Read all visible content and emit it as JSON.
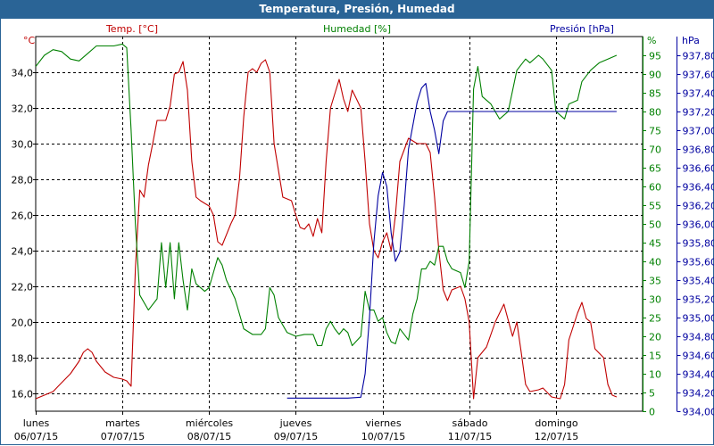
{
  "window": {
    "title": "Temperatura, Presión, Humedad"
  },
  "chart_data": {
    "type": "line",
    "title": "Temperatura, Presión, Humedad",
    "x_labels": [
      {
        "day": "lunes",
        "date": "06/07/15"
      },
      {
        "day": "martes",
        "date": "07/07/15"
      },
      {
        "day": "miércoles",
        "date": "08/07/15"
      },
      {
        "day": "jueves",
        "date": "09/07/15"
      },
      {
        "day": "viernes",
        "date": "10/07/15"
      },
      {
        "day": "sábado",
        "date": "11/07/15"
      },
      {
        "day": "domingo",
        "date": "12/07/15"
      }
    ],
    "x_range_days": [
      0,
      7.0
    ],
    "axes": {
      "temp": {
        "label": "Temp. [°C]",
        "unit": "°C",
        "range": [
          15.0,
          36.0
        ],
        "ticks": [
          "16,0",
          "18,0",
          "20,0",
          "22,0",
          "24,0",
          "26,0",
          "28,0",
          "30,0",
          "32,0",
          "34,0"
        ],
        "tick_values": [
          16,
          18,
          20,
          22,
          24,
          26,
          28,
          30,
          32,
          34
        ],
        "color": "#c00000"
      },
      "hum": {
        "label": "Humedad [%]",
        "unit": "%",
        "range": [
          0,
          100
        ],
        "ticks": [
          "0",
          "5",
          "10",
          "15",
          "20",
          "25",
          "30",
          "35",
          "40",
          "45",
          "50",
          "55",
          "60",
          "65",
          "70",
          "75",
          "80",
          "85",
          "90",
          "95"
        ],
        "tick_values": [
          0,
          5,
          10,
          15,
          20,
          25,
          30,
          35,
          40,
          45,
          50,
          55,
          60,
          65,
          70,
          75,
          80,
          85,
          90,
          95
        ],
        "color": "#008000"
      },
      "pres": {
        "label": "Presión [hPa]",
        "unit": "hPa",
        "range": [
          934.0,
          938.0
        ],
        "ticks": [
          "934,00",
          "934,20",
          "934,40",
          "934,60",
          "934,80",
          "935,00",
          "935,20",
          "935,40",
          "935,60",
          "935,80",
          "936,00",
          "936,20",
          "936,40",
          "936,60",
          "936,80",
          "937,00",
          "937,20",
          "937,40",
          "937,60",
          "937,80"
        ],
        "tick_values": [
          934.0,
          934.2,
          934.4,
          934.6,
          934.8,
          935.0,
          935.2,
          935.4,
          935.6,
          935.8,
          936.0,
          936.2,
          936.4,
          936.6,
          936.8,
          937.0,
          937.2,
          937.4,
          937.6,
          937.8
        ],
        "color": "#0000a0"
      }
    },
    "grid": true,
    "series": [
      {
        "name": "Temp. [°C]",
        "axis": "temp",
        "color": "#c00000",
        "points": [
          [
            0.0,
            15.7
          ],
          [
            0.1,
            15.9
          ],
          [
            0.2,
            16.1
          ],
          [
            0.3,
            16.6
          ],
          [
            0.4,
            17.1
          ],
          [
            0.5,
            17.8
          ],
          [
            0.55,
            18.3
          ],
          [
            0.6,
            18.5
          ],
          [
            0.65,
            18.3
          ],
          [
            0.7,
            17.8
          ],
          [
            0.8,
            17.2
          ],
          [
            0.9,
            16.9
          ],
          [
            1.0,
            16.8
          ],
          [
            1.05,
            16.7
          ],
          [
            1.1,
            16.4
          ],
          [
            1.15,
            23.0
          ],
          [
            1.2,
            27.4
          ],
          [
            1.25,
            27.0
          ],
          [
            1.3,
            28.8
          ],
          [
            1.35,
            30.0
          ],
          [
            1.4,
            31.3
          ],
          [
            1.5,
            31.3
          ],
          [
            1.55,
            32.1
          ],
          [
            1.6,
            33.9
          ],
          [
            1.65,
            34.0
          ],
          [
            1.7,
            34.6
          ],
          [
            1.75,
            33.0
          ],
          [
            1.8,
            29.0
          ],
          [
            1.85,
            27.0
          ],
          [
            1.9,
            26.8
          ],
          [
            2.0,
            26.5
          ],
          [
            2.05,
            26.0
          ],
          [
            2.1,
            24.5
          ],
          [
            2.15,
            24.3
          ],
          [
            2.25,
            25.5
          ],
          [
            2.3,
            26.0
          ],
          [
            2.35,
            28.0
          ],
          [
            2.4,
            31.5
          ],
          [
            2.45,
            34.0
          ],
          [
            2.5,
            34.2
          ],
          [
            2.55,
            34.0
          ],
          [
            2.6,
            34.5
          ],
          [
            2.65,
            34.7
          ],
          [
            2.7,
            34.0
          ],
          [
            2.75,
            30.0
          ],
          [
            2.85,
            27.0
          ],
          [
            2.95,
            26.8
          ],
          [
            3.0,
            26.0
          ],
          [
            3.05,
            25.3
          ],
          [
            3.1,
            25.2
          ],
          [
            3.15,
            25.5
          ],
          [
            3.2,
            24.8
          ],
          [
            3.25,
            25.8
          ],
          [
            3.3,
            25.0
          ],
          [
            3.35,
            29.0
          ],
          [
            3.4,
            32.0
          ],
          [
            3.5,
            33.6
          ],
          [
            3.55,
            32.5
          ],
          [
            3.6,
            31.8
          ],
          [
            3.65,
            33.0
          ],
          [
            3.75,
            32.0
          ],
          [
            3.8,
            29.0
          ],
          [
            3.85,
            25.5
          ],
          [
            3.9,
            24.0
          ],
          [
            3.95,
            23.6
          ],
          [
            4.0,
            24.5
          ],
          [
            4.05,
            25.0
          ],
          [
            4.1,
            24.0
          ],
          [
            4.15,
            26.0
          ],
          [
            4.2,
            29.0
          ],
          [
            4.3,
            30.3
          ],
          [
            4.4,
            30.0
          ],
          [
            4.5,
            30.0
          ],
          [
            4.55,
            29.5
          ],
          [
            4.6,
            27.0
          ],
          [
            4.65,
            24.0
          ],
          [
            4.7,
            21.8
          ],
          [
            4.75,
            21.2
          ],
          [
            4.8,
            21.8
          ],
          [
            4.9,
            22.0
          ],
          [
            4.95,
            21.3
          ],
          [
            5.0,
            20.0
          ],
          [
            5.05,
            15.7
          ],
          [
            5.1,
            18.0
          ],
          [
            5.2,
            18.6
          ],
          [
            5.3,
            20.0
          ],
          [
            5.4,
            21.0
          ],
          [
            5.5,
            19.2
          ],
          [
            5.55,
            20.0
          ],
          [
            5.6,
            18.3
          ],
          [
            5.65,
            16.5
          ],
          [
            5.7,
            16.1
          ],
          [
            5.8,
            16.2
          ],
          [
            5.85,
            16.3
          ],
          [
            5.95,
            15.8
          ],
          [
            6.05,
            15.7
          ],
          [
            6.1,
            16.5
          ],
          [
            6.15,
            19.0
          ],
          [
            6.25,
            20.5
          ],
          [
            6.3,
            21.1
          ],
          [
            6.35,
            20.2
          ],
          [
            6.4,
            20.0
          ],
          [
            6.45,
            18.5
          ],
          [
            6.55,
            18.0
          ],
          [
            6.6,
            16.5
          ],
          [
            6.65,
            15.9
          ],
          [
            6.7,
            15.8
          ]
        ]
      },
      {
        "name": "Humedad [%]",
        "axis": "hum",
        "color": "#008000",
        "points": [
          [
            0.0,
            92.0
          ],
          [
            0.1,
            95.0
          ],
          [
            0.2,
            96.5
          ],
          [
            0.3,
            96.0
          ],
          [
            0.4,
            94.0
          ],
          [
            0.5,
            93.5
          ],
          [
            0.6,
            95.5
          ],
          [
            0.7,
            97.5
          ],
          [
            0.8,
            97.5
          ],
          [
            0.9,
            97.5
          ],
          [
            1.0,
            98.0
          ],
          [
            1.05,
            97.0
          ],
          [
            1.1,
            75.0
          ],
          [
            1.15,
            50.0
          ],
          [
            1.2,
            31.0
          ],
          [
            1.3,
            27.0
          ],
          [
            1.4,
            30.0
          ],
          [
            1.45,
            45.0
          ],
          [
            1.5,
            33.0
          ],
          [
            1.55,
            45.0
          ],
          [
            1.6,
            30.0
          ],
          [
            1.65,
            45.0
          ],
          [
            1.7,
            35.0
          ],
          [
            1.75,
            27.0
          ],
          [
            1.8,
            38.0
          ],
          [
            1.85,
            34.0
          ],
          [
            1.9,
            33.0
          ],
          [
            1.95,
            32.0
          ],
          [
            2.0,
            33.0
          ],
          [
            2.05,
            37.0
          ],
          [
            2.1,
            41.0
          ],
          [
            2.15,
            39.0
          ],
          [
            2.2,
            35.0
          ],
          [
            2.3,
            30.0
          ],
          [
            2.4,
            22.0
          ],
          [
            2.5,
            20.5
          ],
          [
            2.6,
            20.5
          ],
          [
            2.65,
            22.0
          ],
          [
            2.7,
            33.0
          ],
          [
            2.75,
            31.0
          ],
          [
            2.8,
            25.0
          ],
          [
            2.9,
            21.0
          ],
          [
            3.0,
            20.0
          ],
          [
            3.1,
            20.5
          ],
          [
            3.2,
            20.5
          ],
          [
            3.25,
            17.5
          ],
          [
            3.3,
            17.5
          ],
          [
            3.35,
            22.0
          ],
          [
            3.4,
            24.0
          ],
          [
            3.45,
            22.0
          ],
          [
            3.5,
            20.5
          ],
          [
            3.55,
            22.0
          ],
          [
            3.6,
            21.0
          ],
          [
            3.65,
            17.5
          ],
          [
            3.75,
            20.0
          ],
          [
            3.8,
            32.0
          ],
          [
            3.85,
            27.0
          ],
          [
            3.9,
            27.0
          ],
          [
            3.95,
            24.0
          ],
          [
            4.0,
            25.0
          ],
          [
            4.05,
            21.0
          ],
          [
            4.1,
            18.5
          ],
          [
            4.15,
            18.0
          ],
          [
            4.2,
            22.0
          ],
          [
            4.3,
            19.0
          ],
          [
            4.35,
            26.0
          ],
          [
            4.4,
            30.0
          ],
          [
            4.45,
            38.0
          ],
          [
            4.5,
            38.0
          ],
          [
            4.55,
            40.0
          ],
          [
            4.6,
            39.0
          ],
          [
            4.65,
            44.0
          ],
          [
            4.7,
            44.0
          ],
          [
            4.75,
            40.0
          ],
          [
            4.8,
            38.0
          ],
          [
            4.9,
            37.0
          ],
          [
            4.95,
            33.0
          ],
          [
            5.0,
            40.0
          ],
          [
            5.05,
            86.0
          ],
          [
            5.1,
            92.0
          ],
          [
            5.15,
            84.0
          ],
          [
            5.25,
            82.0
          ],
          [
            5.35,
            78.0
          ],
          [
            5.45,
            80.0
          ],
          [
            5.55,
            91.0
          ],
          [
            5.65,
            94.0
          ],
          [
            5.7,
            93.0
          ],
          [
            5.8,
            95.0
          ],
          [
            5.85,
            94.0
          ],
          [
            5.95,
            91.0
          ],
          [
            6.0,
            80.0
          ],
          [
            6.1,
            78.0
          ],
          [
            6.15,
            82.0
          ],
          [
            6.25,
            83.0
          ],
          [
            6.3,
            88.0
          ],
          [
            6.4,
            91.0
          ],
          [
            6.5,
            93.0
          ],
          [
            6.6,
            94.0
          ],
          [
            6.7,
            95.0
          ]
        ]
      },
      {
        "name": "Presión [hPa]",
        "axis": "pres",
        "color": "#0000a0",
        "points": [
          [
            2.9,
            934.14
          ],
          [
            3.0,
            934.14
          ],
          [
            3.2,
            934.14
          ],
          [
            3.4,
            934.14
          ],
          [
            3.6,
            934.14
          ],
          [
            3.75,
            934.15
          ],
          [
            3.8,
            934.4
          ],
          [
            3.85,
            935.0
          ],
          [
            3.9,
            935.8
          ],
          [
            3.95,
            936.3
          ],
          [
            4.0,
            936.55
          ],
          [
            4.05,
            936.4
          ],
          [
            4.1,
            935.9
          ],
          [
            4.15,
            935.6
          ],
          [
            4.2,
            935.7
          ],
          [
            4.25,
            936.2
          ],
          [
            4.3,
            936.8
          ],
          [
            4.4,
            937.3
          ],
          [
            4.45,
            937.45
          ],
          [
            4.5,
            937.5
          ],
          [
            4.55,
            937.2
          ],
          [
            4.6,
            937.0
          ],
          [
            4.65,
            936.75
          ],
          [
            4.7,
            937.1
          ],
          [
            4.75,
            937.2
          ],
          [
            4.8,
            937.2
          ],
          [
            5.0,
            937.2
          ],
          [
            5.5,
            937.2
          ],
          [
            6.0,
            937.2
          ],
          [
            6.5,
            937.2
          ],
          [
            6.7,
            937.2
          ]
        ]
      }
    ]
  }
}
